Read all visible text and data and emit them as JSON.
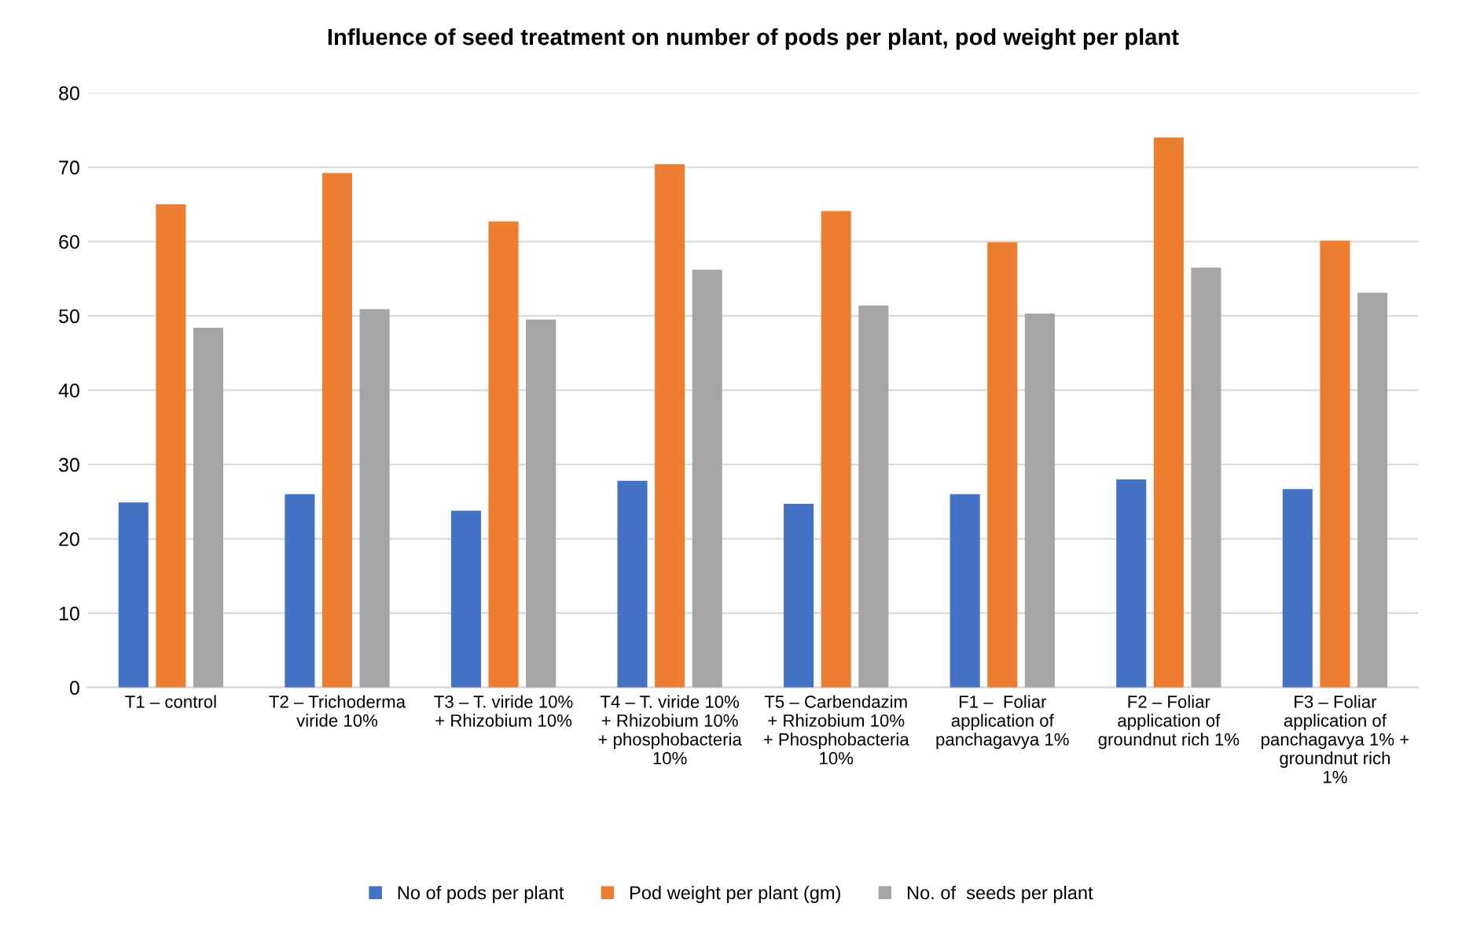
{
  "chart_data": {
    "type": "bar",
    "title": "Influence of seed treatment on number of pods per plant, pod weight per plant",
    "categories": [
      "T1 – control",
      "T2 – Trichoderma\nviride 10%",
      "T3 – T. viride 10%\n+ Rhizobium 10%",
      "T4 – T. viride 10%\n+ Rhizobium 10%\n+ phosphobacteria\n10%",
      "T5 – Carbendazim\n+ Rhizobium 10%\n+ Phosphobacteria\n10%",
      "F1 –  Foliar\napplication of\npanchagavya 1%",
      "F2 – Foliar\napplication of\ngroundnut rich 1%",
      "F3 – Foliar\napplication of\npanchagavya 1% +\ngroundnut rich\n1%"
    ],
    "series": [
      {
        "name": "No of pods per plant",
        "color": "#4472c4",
        "values": [
          24.9,
          26.0,
          23.8,
          27.8,
          24.7,
          26.0,
          28.0,
          26.7
        ]
      },
      {
        "name": "Pod weight per plant (gm)",
        "color": "#ed7d31",
        "values": [
          65.0,
          69.2,
          62.7,
          70.4,
          64.1,
          59.9,
          74.0,
          60.1
        ]
      },
      {
        "name": "No. of  seeds per plant",
        "color": "#a5a5a5",
        "values": [
          48.4,
          50.9,
          49.5,
          56.2,
          51.4,
          50.3,
          56.5,
          53.1
        ]
      }
    ],
    "ylim": [
      0,
      80
    ],
    "yticks": [
      0,
      10,
      20,
      30,
      40,
      50,
      60,
      70,
      80
    ],
    "grid": "y",
    "legend": "bottom"
  }
}
